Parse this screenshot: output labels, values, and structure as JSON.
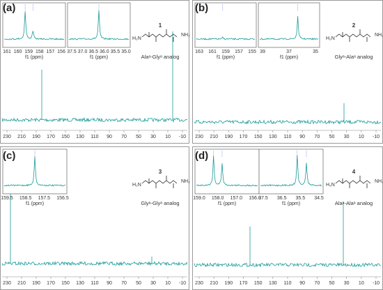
{
  "panels": [
    {
      "label": "(a)",
      "compound_number": "1",
      "caption": "Alaᵃ-Glyᵃ analog",
      "left_group": "H₂N",
      "right_group": "NH₂",
      "main_ticks": [
        "230",
        "210",
        "190",
        "170",
        "150",
        "130",
        "110",
        "90",
        "70",
        "50",
        "30",
        "10",
        "-10"
      ],
      "insets": [
        {
          "ticks": [
            "161",
            "160",
            "159",
            "158",
            "157",
            "156"
          ],
          "axis_label": "f1 (ppm)"
        },
        {
          "ticks": [
            "37.5",
            "37.0",
            "36.5",
            "36.0",
            "35.5",
            "35.0"
          ],
          "axis_label": "f1 (ppm)"
        }
      ]
    },
    {
      "label": "(b)",
      "compound_number": "2",
      "caption": "Glyᵃ-Alaᵃ analog",
      "left_group": "H₂N",
      "right_group": "NH₂",
      "main_ticks": [
        "230",
        "210",
        "190",
        "170",
        "150",
        "130",
        "110",
        "90",
        "70",
        "50",
        "30",
        "10",
        "-10"
      ],
      "insets": [
        {
          "ticks": [
            "163",
            "161",
            "159",
            "157",
            "155"
          ],
          "axis_label": "f1 (ppm)"
        },
        {
          "ticks": [
            "39",
            "37",
            "35"
          ],
          "axis_label": "f1 (ppm)"
        }
      ]
    },
    {
      "label": "(c)",
      "compound_number": "3",
      "caption": "Glyᵃ-Glyᵃ analog",
      "left_group": "H₂N",
      "right_group": "NH₂",
      "main_ticks": [
        "230",
        "210",
        "190",
        "170",
        "150",
        "130",
        "110",
        "90",
        "70",
        "50",
        "30",
        "10",
        "-10"
      ],
      "insets": [
        {
          "ticks": [
            "159.5",
            "158.5",
            "157.5",
            "156.5"
          ],
          "axis_label": "f1 (ppm)"
        }
      ]
    },
    {
      "label": "(d)",
      "compound_number": "4",
      "caption": "Alaᵃ-Alaᵃ analog",
      "left_group": "H₂N",
      "right_group": "NH₂",
      "main_ticks": [
        "230",
        "210",
        "190",
        "170",
        "150",
        "130",
        "110",
        "90",
        "70",
        "50",
        "30",
        "10",
        "-10"
      ],
      "insets": [
        {
          "ticks": [
            "159.0",
            "158.0",
            "157.0",
            "156.0"
          ],
          "axis_label": "f1 (ppm)"
        },
        {
          "ticks": [
            "37.5",
            "36.5",
            "35.5",
            "34.5"
          ],
          "axis_label": "f1 (ppm)"
        }
      ]
    }
  ]
}
